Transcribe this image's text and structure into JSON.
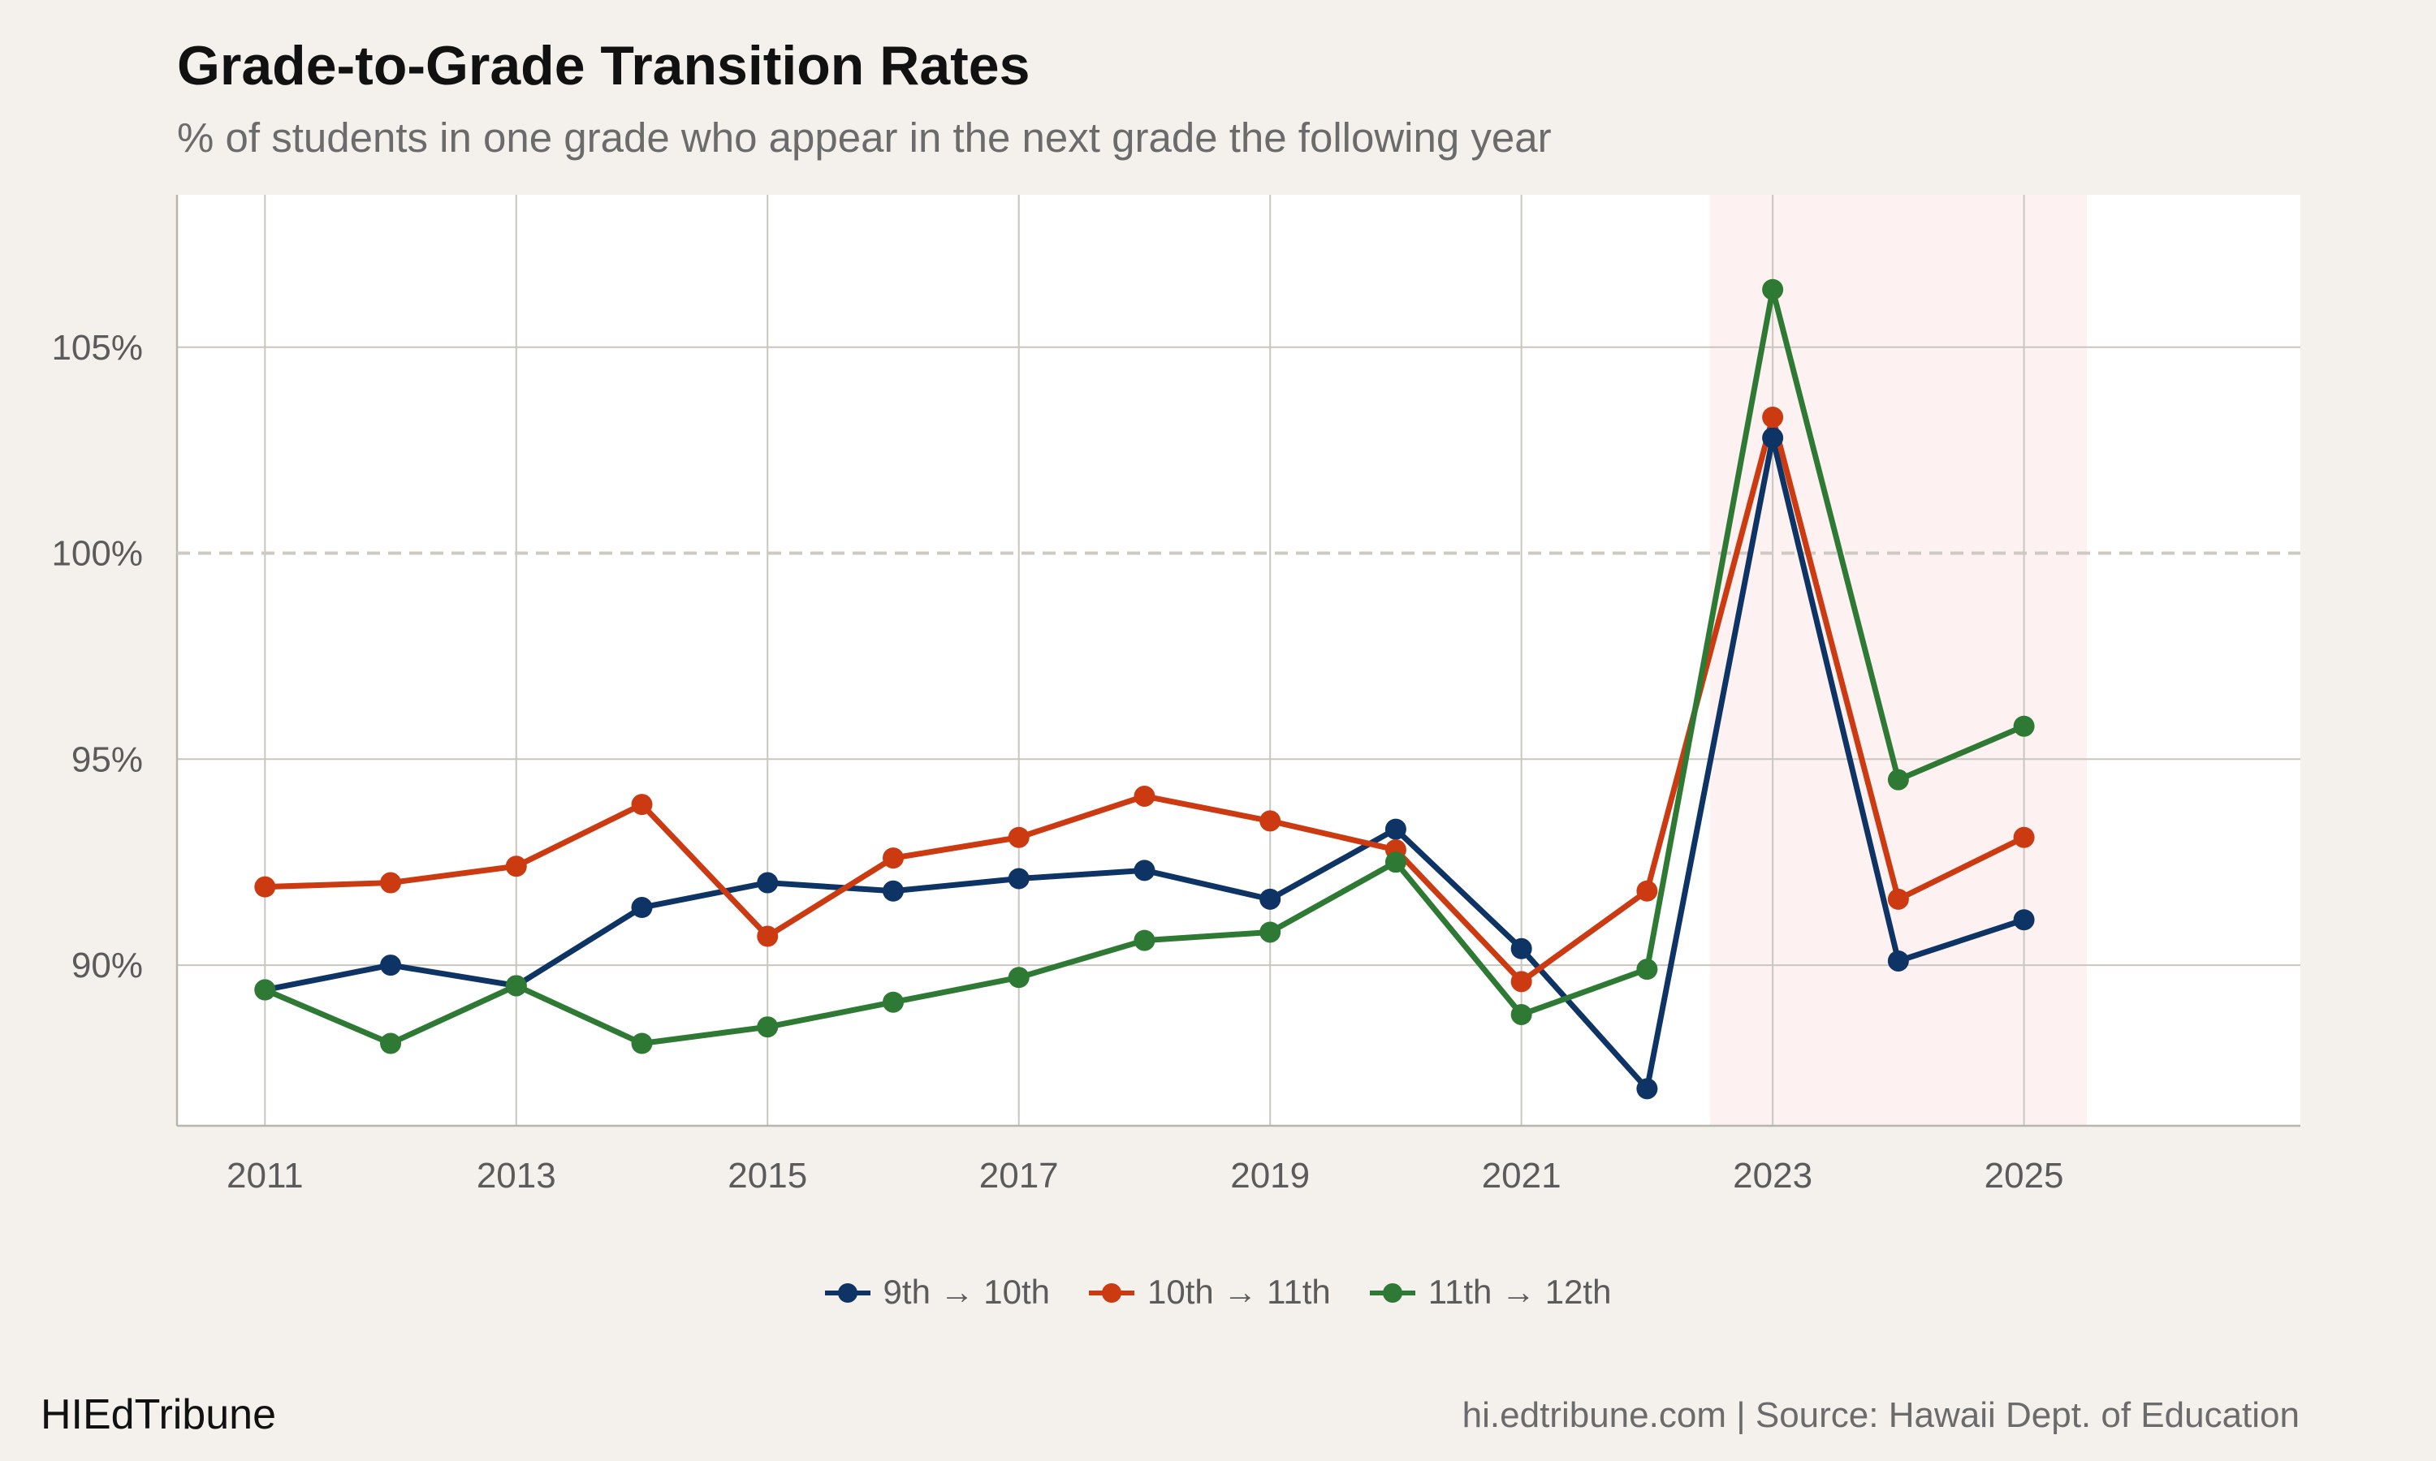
{
  "header": {
    "title": "Grade-to-Grade Transition Rates",
    "subtitle": "% of students in one grade who appear in the next grade the following year"
  },
  "footer": {
    "brand": "HIEdTribune",
    "source": "hi.edtribune.com | Source: Hawaii Dept. of Education"
  },
  "colors": {
    "background": "#f4f1ed",
    "panel": "#ffffff",
    "grid": "#c9c6c0",
    "highlight_band": "#fdf2f1",
    "reference_line": "#cfc9c4"
  },
  "chart_data": {
    "type": "line",
    "title": "Grade-to-Grade Transition Rates",
    "subtitle": "% of students in one grade who appear in the next grade the following year",
    "xlabel": "",
    "ylabel": "",
    "x": [
      2011,
      2012,
      2013,
      2014,
      2015,
      2016,
      2017,
      2018,
      2019,
      2020,
      2021,
      2022,
      2023,
      2024,
      2025
    ],
    "xlim": [
      2010.3,
      2027.2
    ],
    "ylim": [
      86.1,
      108.7
    ],
    "x_ticks": [
      2011,
      2013,
      2015,
      2017,
      2019,
      2021,
      2023,
      2025
    ],
    "x_tick_labels": [
      "2011",
      "2013",
      "2015",
      "2017",
      "2019",
      "2021",
      "2023",
      "2025"
    ],
    "y_ticks": [
      90,
      95,
      100,
      105
    ],
    "y_tick_labels": [
      "90%",
      "95%",
      "100%",
      "105%"
    ],
    "grid": true,
    "reference_line": {
      "y": 100,
      "style": "dashed"
    },
    "highlight_range": [
      2022.5,
      2025.5
    ],
    "legend_position": "bottom",
    "series": [
      {
        "name": "9th → 10th",
        "color": "#0d3464",
        "values": [
          89.4,
          90.0,
          89.5,
          91.4,
          92.0,
          91.8,
          92.1,
          92.3,
          91.6,
          93.3,
          90.4,
          87.0,
          102.8,
          90.1,
          91.1
        ]
      },
      {
        "name": "10th → 11th",
        "color": "#cc3a12",
        "values": [
          91.9,
          92.0,
          92.4,
          93.9,
          90.7,
          92.6,
          93.1,
          94.1,
          93.5,
          92.8,
          89.6,
          91.8,
          103.3,
          91.6,
          93.1
        ]
      },
      {
        "name": "11th → 12th",
        "color": "#2e7a34",
        "values": [
          89.4,
          88.1,
          89.5,
          88.1,
          88.5,
          89.1,
          89.7,
          90.6,
          90.8,
          92.5,
          88.8,
          89.9,
          106.4,
          94.5,
          95.8
        ]
      }
    ]
  }
}
